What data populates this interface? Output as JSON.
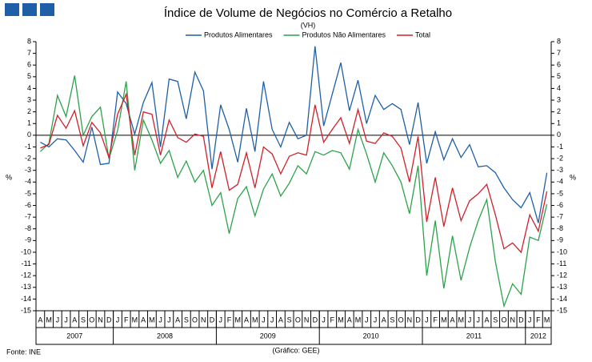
{
  "chart_data": {
    "type": "line",
    "title": "Índice de Volume de Negócios no Comércio a Retalho",
    "subtitle": "(VH)",
    "y_axis_label": "%",
    "y2_axis_label": "%",
    "source": "Fonte: INE",
    "credit": "(Gráfico: GEE)",
    "legend": "top",
    "grid": false,
    "category_groups": [
      {
        "label": "2007",
        "categories": [
          "A",
          "M",
          "J",
          "J",
          "A",
          "S",
          "O",
          "N",
          "D"
        ]
      },
      {
        "label": "2008",
        "categories": [
          "J",
          "F",
          "M",
          "A",
          "M",
          "J",
          "J",
          "A",
          "S",
          "O",
          "N",
          "D"
        ]
      },
      {
        "label": "2009",
        "categories": [
          "J",
          "F",
          "M",
          "A",
          "M",
          "J",
          "J",
          "A",
          "S",
          "O",
          "N",
          "D"
        ]
      },
      {
        "label": "2010",
        "categories": [
          "J",
          "F",
          "M",
          "A",
          "M",
          "J",
          "J",
          "A",
          "S",
          "O",
          "N",
          "D"
        ]
      },
      {
        "label": "2011",
        "categories": [
          "J",
          "F",
          "M",
          "A",
          "M",
          "J",
          "J",
          "A",
          "S",
          "O",
          "N",
          "D"
        ]
      },
      {
        "label": "2012",
        "categories": [
          "J",
          "F",
          "M"
        ]
      }
    ],
    "ylim": [
      -15,
      8
    ],
    "yticks": [
      -15,
      -14,
      -13,
      -12,
      -11,
      -10,
      -9,
      -8,
      -7,
      -6,
      -5,
      -4,
      -3,
      -2,
      -1,
      0,
      1,
      2,
      3,
      4,
      5,
      6,
      7,
      8
    ],
    "series": [
      {
        "name": "Produtos Alimentares",
        "color": "#1f5fa8",
        "values": [
          -0.6,
          -1.0,
          -0.3,
          -0.4,
          -1.3,
          -2.3,
          0.7,
          -2.5,
          -2.4,
          3.7,
          2.7,
          0.1,
          2.8,
          4.5,
          -1.0,
          4.8,
          4.6,
          1.4,
          5.4,
          3.8,
          -2.9,
          2.6,
          0.5,
          -2.3,
          2.3,
          -1.4,
          4.6,
          0.5,
          -1.0,
          1.1,
          -0.3,
          0.0,
          7.6,
          0.8,
          3.5,
          6.2,
          2.1,
          4.7,
          1.0,
          3.4,
          2.2,
          2.7,
          2.2,
          -0.8,
          2.8,
          -2.4,
          0.3,
          -2.1,
          -0.3,
          -1.9,
          -0.8,
          -2.7,
          -2.6,
          -3.2,
          -4.5,
          -5.5,
          -6.2,
          -4.9,
          -7.5,
          -3.2
        ]
      },
      {
        "name": "Produtos Não Alimentares",
        "color": "#2ca24a",
        "values": [
          -1.4,
          -0.7,
          3.4,
          1.6,
          5.1,
          0.0,
          1.6,
          2.4,
          -2.0,
          0.4,
          4.6,
          -3.0,
          1.3,
          -0.4,
          -2.4,
          -1.3,
          -3.6,
          -2.2,
          -4.0,
          -3.0,
          -6.0,
          -4.9,
          -8.4,
          -5.4,
          -4.4,
          -6.9,
          -4.6,
          -3.3,
          -5.2,
          -4.1,
          -2.6,
          -3.3,
          -1.4,
          -1.7,
          -1.3,
          -1.5,
          -2.9,
          0.5,
          -1.6,
          -4.0,
          -1.5,
          -2.6,
          -4.0,
          -6.7,
          -2.6,
          -12.0,
          -7.3,
          -13.1,
          -8.6,
          -12.4,
          -9.6,
          -7.3,
          -5.5,
          -10.8,
          -14.6,
          -12.7,
          -13.6,
          -8.7,
          -9.0,
          -5.9
        ]
      },
      {
        "name": "Total",
        "color": "#d0202a",
        "values": [
          -1.1,
          -0.8,
          1.7,
          0.6,
          2.1,
          -0.9,
          1.1,
          0.2,
          -1.9,
          1.8,
          3.5,
          -1.7,
          2.0,
          1.8,
          -1.7,
          1.3,
          -0.2,
          -0.6,
          0.1,
          -0.1,
          -4.5,
          -1.4,
          -4.7,
          -4.2,
          -1.5,
          -4.5,
          -1.0,
          -1.6,
          -3.3,
          -1.8,
          -1.5,
          -1.7,
          2.6,
          -0.6,
          0.5,
          1.5,
          -0.7,
          2.2,
          -0.5,
          -0.7,
          0.2,
          -0.1,
          -1.1,
          -4.0,
          -0.1,
          -7.4,
          -3.6,
          -7.8,
          -4.5,
          -7.3,
          -5.6,
          -5.0,
          -4.2,
          -6.8,
          -9.7,
          -9.2,
          -10.0,
          -6.8,
          -8.2,
          -4.8
        ]
      }
    ]
  }
}
